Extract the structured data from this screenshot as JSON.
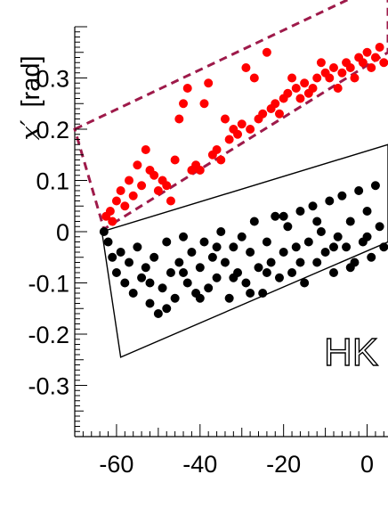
{
  "chart_data": {
    "type": "scatter",
    "title": "",
    "xlabel": "",
    "ylabel_symbol": "x′",
    "ylabel_unit": "[rad]",
    "xlim": [
      -70,
      5
    ],
    "ylim": [
      -0.4,
      0.4
    ],
    "x_ticks": [
      {
        "value": -60,
        "label": "-60"
      },
      {
        "value": -40,
        "label": "-40"
      },
      {
        "value": -20,
        "label": "-20"
      },
      {
        "value": 0,
        "label": "0"
      }
    ],
    "y_ticks": [
      {
        "value": 0.3,
        "label": "0.3"
      },
      {
        "value": 0.2,
        "label": "0.2"
      },
      {
        "value": 0.1,
        "label": "0.1"
      },
      {
        "value": 0.0,
        "label": "0"
      },
      {
        "value": -0.1,
        "label": "-0.1"
      },
      {
        "value": -0.2,
        "label": "-0.2"
      },
      {
        "value": -0.3,
        "label": "-0.3"
      }
    ],
    "grid": false,
    "annotation": "HK",
    "series": [
      {
        "color": "#ff0000",
        "points": [
          [
            -62.5,
            0.03
          ],
          [
            -61.5,
            0.04
          ],
          [
            -61,
            0.02
          ],
          [
            -60,
            0.06
          ],
          [
            -59,
            0.08
          ],
          [
            -58,
            0.05
          ],
          [
            -57,
            0.1
          ],
          [
            -56,
            0.07
          ],
          [
            -55,
            0.13
          ],
          [
            -54,
            0.09
          ],
          [
            -53,
            0.16
          ],
          [
            -52,
            0.12
          ],
          [
            -51,
            0.11
          ],
          [
            -50,
            0.08
          ],
          [
            -49,
            0.1
          ],
          [
            -48,
            0.09
          ],
          [
            -47,
            0.06
          ],
          [
            -46,
            0.14
          ],
          [
            -45,
            0.22
          ],
          [
            -44,
            0.25
          ],
          [
            -43,
            0.28
          ],
          [
            -42,
            0.12
          ],
          [
            -41,
            0.13
          ],
          [
            -40,
            0.12
          ],
          [
            -39,
            0.25
          ],
          [
            -38,
            0.29
          ],
          [
            -37,
            0.15
          ],
          [
            -36,
            0.16
          ],
          [
            -35,
            0.14
          ],
          [
            -34,
            0.22
          ],
          [
            -33,
            0.18
          ],
          [
            -32,
            0.2
          ],
          [
            -31,
            0.19
          ],
          [
            -30,
            0.21
          ],
          [
            -29,
            0.32
          ],
          [
            -28,
            0.2
          ],
          [
            -27,
            0.3
          ],
          [
            -26,
            0.22
          ],
          [
            -25,
            0.23
          ],
          [
            -24,
            0.35
          ],
          [
            -23,
            0.24
          ],
          [
            -22,
            0.25
          ],
          [
            -21,
            0.23
          ],
          [
            -20,
            0.26
          ],
          [
            -19,
            0.27
          ],
          [
            -18,
            0.3
          ],
          [
            -17,
            0.28
          ],
          [
            -16,
            0.26
          ],
          [
            -15,
            0.29
          ],
          [
            -14,
            0.27
          ],
          [
            -13,
            0.28
          ],
          [
            -12,
            0.3
          ],
          [
            -11,
            0.33
          ],
          [
            -10,
            0.31
          ],
          [
            -9,
            0.3
          ],
          [
            -8,
            0.32
          ],
          [
            -7,
            0.28
          ],
          [
            -6,
            0.31
          ],
          [
            -5,
            0.33
          ],
          [
            -4,
            0.32
          ],
          [
            -3,
            0.3
          ],
          [
            -2,
            0.34
          ],
          [
            -1,
            0.33
          ],
          [
            0,
            0.35
          ],
          [
            1,
            0.32
          ],
          [
            2,
            0.34
          ],
          [
            3,
            0.36
          ],
          [
            4,
            0.33
          ]
        ]
      },
      {
        "color": "#000000",
        "points": [
          [
            -63,
            0.0
          ],
          [
            -62,
            -0.02
          ],
          [
            -61,
            -0.05
          ],
          [
            -60,
            -0.08
          ],
          [
            -59,
            -0.04
          ],
          [
            -58,
            -0.1
          ],
          [
            -57,
            -0.06
          ],
          [
            -56,
            -0.12
          ],
          [
            -55,
            -0.03
          ],
          [
            -54,
            -0.09
          ],
          [
            -53,
            -0.07
          ],
          [
            -52,
            -0.14
          ],
          [
            -51,
            -0.05
          ],
          [
            -50,
            -0.16
          ],
          [
            -49,
            -0.11
          ],
          [
            -48,
            -0.02
          ],
          [
            -47,
            -0.08
          ],
          [
            -46,
            -0.13
          ],
          [
            -45,
            -0.06
          ],
          [
            -44,
            -0.01
          ],
          [
            -43,
            -0.1
          ],
          [
            -42,
            -0.04
          ],
          [
            -41,
            -0.12
          ],
          [
            -40,
            -0.07
          ],
          [
            -39,
            -0.02
          ],
          [
            -38,
            -0.11
          ],
          [
            -37,
            -0.05
          ],
          [
            -36,
            -0.09
          ],
          [
            -35,
            0.0
          ],
          [
            -34,
            -0.06
          ],
          [
            -33,
            -0.13
          ],
          [
            -32,
            -0.03
          ],
          [
            -31,
            -0.08
          ],
          [
            -30,
            -0.01
          ],
          [
            -29,
            -0.1
          ],
          [
            -28,
            -0.04
          ],
          [
            -27,
            0.02
          ],
          [
            -26,
            -0.07
          ],
          [
            -25,
            -0.12
          ],
          [
            -24,
            -0.02
          ],
          [
            -23,
            -0.06
          ],
          [
            -22,
            0.03
          ],
          [
            -21,
            -0.09
          ],
          [
            -20,
            -0.04
          ],
          [
            -19,
            0.01
          ],
          [
            -18,
            -0.08
          ],
          [
            -17,
            -0.03
          ],
          [
            -16,
            0.04
          ],
          [
            -15,
            -0.1
          ],
          [
            -14,
            -0.02
          ],
          [
            -13,
            0.05
          ],
          [
            -12,
            -0.06
          ],
          [
            -11,
            0.0
          ],
          [
            -10,
            -0.04
          ],
          [
            -9,
            0.06
          ],
          [
            -8,
            -0.08
          ],
          [
            -7,
            -0.01
          ],
          [
            -6,
            0.07
          ],
          [
            -5,
            -0.03
          ],
          [
            -4,
            0.02
          ],
          [
            -3,
            -0.06
          ],
          [
            -2,
            0.08
          ],
          [
            -1,
            -0.02
          ],
          [
            0,
            0.04
          ],
          [
            1,
            -0.05
          ],
          [
            2,
            0.09
          ],
          [
            3,
            0.01
          ],
          [
            4,
            -0.03
          ],
          [
            -52,
            -0.1
          ],
          [
            -48,
            -0.15
          ],
          [
            -44,
            -0.08
          ],
          [
            -40,
            -0.13
          ],
          [
            -36,
            -0.03
          ],
          [
            -32,
            -0.09
          ],
          [
            -28,
            -0.12
          ],
          [
            -24,
            -0.08
          ],
          [
            -20,
            0.03
          ],
          [
            -16,
            -0.06
          ],
          [
            -12,
            0.02
          ],
          [
            -8,
            -0.03
          ],
          [
            -4,
            -0.07
          ],
          [
            0,
            -0.01
          ]
        ]
      }
    ],
    "regions": [
      {
        "style": "dashed",
        "color": "#9e1a4a"
      },
      {
        "style": "solid",
        "color": "#000000"
      }
    ]
  }
}
